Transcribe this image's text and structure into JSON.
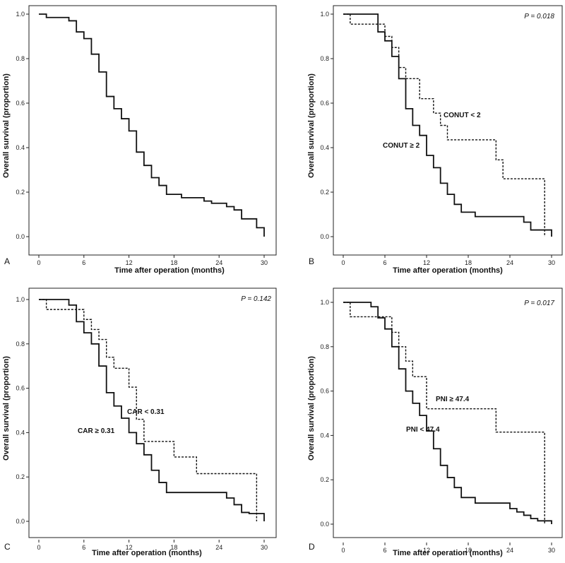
{
  "chart_data": [
    {
      "panel": "A",
      "type": "line",
      "step": true,
      "xlabel": "Time after operation (months)",
      "ylabel": "Overall survival (proportion)",
      "xlim": [
        0,
        30
      ],
      "ylim": [
        0,
        1
      ],
      "xticks": [
        "0",
        "6",
        "12",
        "18",
        "24",
        "30"
      ],
      "yticks": [
        "0.0",
        "0.2",
        "0.4",
        "0.6",
        "0.8",
        "1.0"
      ],
      "p_value": "",
      "series": [
        {
          "name": "",
          "style": "solid",
          "x": [
            0,
            1,
            4,
            5,
            6,
            7,
            8,
            9,
            10,
            11,
            12,
            13,
            14,
            15,
            16,
            17,
            19,
            22,
            23,
            25,
            26,
            27,
            29,
            30
          ],
          "y": [
            1.0,
            0.985,
            0.97,
            0.92,
            0.89,
            0.82,
            0.74,
            0.63,
            0.575,
            0.53,
            0.475,
            0.38,
            0.32,
            0.265,
            0.23,
            0.19,
            0.175,
            0.16,
            0.15,
            0.135,
            0.12,
            0.08,
            0.04,
            0.0
          ]
        }
      ]
    },
    {
      "panel": "B",
      "type": "line",
      "step": true,
      "xlabel": "Time after operation (months)",
      "ylabel": "Overall survival (proportion)",
      "xlim": [
        0,
        30
      ],
      "ylim": [
        0,
        1
      ],
      "xticks": [
        "0",
        "6",
        "12",
        "18",
        "24",
        "30"
      ],
      "yticks": [
        "0.0",
        "0.2",
        "0.4",
        "0.6",
        "0.8",
        "1.0"
      ],
      "p_value": "P = 0.018",
      "series": [
        {
          "name": "CONUT ≥ 2",
          "style": "solid",
          "x": [
            0,
            5,
            6,
            7,
            8,
            9,
            10,
            11,
            12,
            13,
            14,
            15,
            16,
            17,
            19,
            26,
            27,
            29,
            30
          ],
          "y": [
            1.0,
            0.92,
            0.88,
            0.81,
            0.71,
            0.575,
            0.5,
            0.455,
            0.365,
            0.31,
            0.24,
            0.19,
            0.145,
            0.11,
            0.09,
            0.065,
            0.03,
            0.03,
            0.0
          ]
        },
        {
          "name": "CONUT < 2",
          "style": "dashed",
          "x": [
            0,
            1,
            6,
            7,
            8,
            9,
            11,
            13,
            14,
            15,
            22,
            23,
            24,
            29
          ],
          "y": [
            1.0,
            0.955,
            0.9,
            0.85,
            0.76,
            0.71,
            0.62,
            0.555,
            0.5,
            0.435,
            0.345,
            0.26,
            0.26,
            0.0
          ]
        }
      ],
      "annotations": [
        "CONUT < 2",
        "CONUT ≥ 2"
      ]
    },
    {
      "panel": "C",
      "type": "line",
      "step": true,
      "xlabel": "Time after operation (months)",
      "ylabel": "Overall survival (proportion)",
      "xlim": [
        0,
        30
      ],
      "ylim": [
        0,
        1
      ],
      "xticks": [
        "0",
        "6",
        "12",
        "18",
        "24",
        "30"
      ],
      "yticks": [
        "0.0",
        "0.2",
        "0.4",
        "0.6",
        "0.8",
        "1.0"
      ],
      "p_value": "P = 0.142",
      "series": [
        {
          "name": "CAR ≥ 0.31",
          "style": "solid",
          "x": [
            0,
            4,
            5,
            6,
            7,
            8,
            9,
            10,
            11,
            12,
            13,
            14,
            15,
            16,
            17,
            25,
            26,
            27,
            28,
            30
          ],
          "y": [
            1.0,
            0.975,
            0.9,
            0.85,
            0.8,
            0.7,
            0.58,
            0.52,
            0.465,
            0.4,
            0.35,
            0.3,
            0.23,
            0.175,
            0.13,
            0.105,
            0.075,
            0.04,
            0.035,
            0.0
          ]
        },
        {
          "name": "CAR < 0.31",
          "style": "dashed",
          "x": [
            0,
            1,
            6,
            7,
            8,
            9,
            10,
            12,
            13,
            14,
            18,
            21,
            29
          ],
          "y": [
            1.0,
            0.955,
            0.91,
            0.865,
            0.82,
            0.74,
            0.69,
            0.605,
            0.46,
            0.36,
            0.29,
            0.215,
            0.0
          ]
        }
      ],
      "annotations": [
        "CAR < 0.31",
        "CAR ≥ 0.31"
      ]
    },
    {
      "panel": "D",
      "type": "line",
      "step": true,
      "xlabel": "Time after operation (months)",
      "ylabel": "Overall survival (proportion)",
      "xlim": [
        0,
        30
      ],
      "ylim": [
        0,
        1
      ],
      "xticks": [
        "0",
        "6",
        "12",
        "18",
        "24",
        "30"
      ],
      "yticks": [
        "0.0",
        "0.2",
        "0.4",
        "0.6",
        "0.8",
        "1.0"
      ],
      "p_value": "P = 0.017",
      "series": [
        {
          "name": "PNI < 47.4",
          "style": "solid",
          "x": [
            0,
            4,
            5,
            6,
            7,
            8,
            9,
            10,
            11,
            12,
            13,
            14,
            15,
            16,
            17,
            19,
            24,
            25,
            26,
            27,
            28,
            30
          ],
          "y": [
            1.0,
            0.98,
            0.93,
            0.88,
            0.8,
            0.7,
            0.6,
            0.545,
            0.49,
            0.42,
            0.34,
            0.265,
            0.21,
            0.165,
            0.12,
            0.095,
            0.07,
            0.055,
            0.04,
            0.025,
            0.015,
            0.0
          ]
        },
        {
          "name": "PNI ≥ 47.4",
          "style": "dashed",
          "x": [
            0,
            1,
            7,
            8,
            9,
            10,
            12,
            22,
            29
          ],
          "y": [
            1.0,
            0.935,
            0.865,
            0.8,
            0.735,
            0.665,
            0.52,
            0.415,
            0.0
          ]
        }
      ],
      "annotations": [
        "PNI ≥ 47.4",
        "PNI < 47.4"
      ]
    }
  ],
  "panel_letters": [
    "A",
    "B",
    "C",
    "D"
  ]
}
